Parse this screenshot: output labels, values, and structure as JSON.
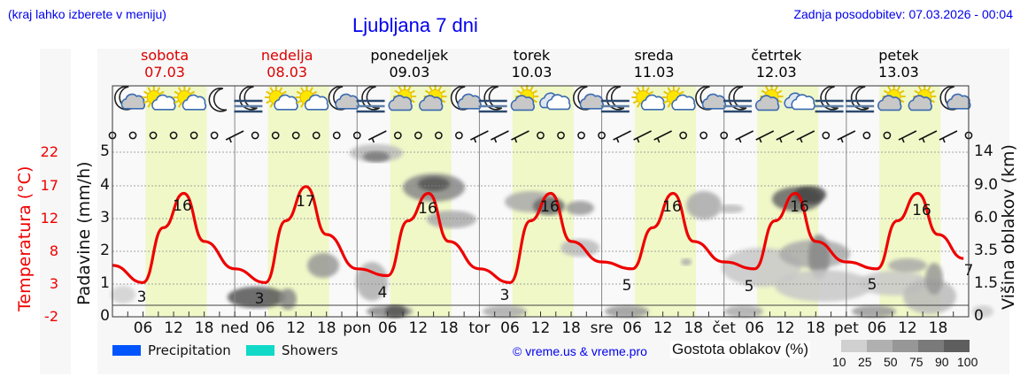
{
  "header": {
    "menu_hint": "(kraj lahko izberete v meniju)",
    "title": "Ljubljana 7 dni",
    "last_update": "Zadnja posodobitev: 07.03.2026 - 00:04"
  },
  "days": [
    {
      "name": "sobota",
      "date": "07.03",
      "weekend": true
    },
    {
      "name": "nedelja",
      "date": "08.03",
      "weekend": true
    },
    {
      "name": "ponedeljek",
      "date": "09.03",
      "weekend": false
    },
    {
      "name": "torek",
      "date": "10.03",
      "weekend": false
    },
    {
      "name": "sreda",
      "date": "11.03",
      "weekend": false
    },
    {
      "name": "četrtek",
      "date": "12.03",
      "weekend": false
    },
    {
      "name": "petek",
      "date": "13.03",
      "weekend": false
    }
  ],
  "axes": {
    "temperature_label": "Temperatura (°C)",
    "temperature_ticks": [
      "22",
      "17",
      "12",
      "8",
      "3",
      "-2"
    ],
    "precip_label": "Padavine (mm/h)",
    "precip_ticks": [
      "5",
      "4",
      "3",
      "2",
      "1",
      "0"
    ],
    "cloud_height_label": "Višina oblakov (km)",
    "cloud_height_ticks": [
      "14",
      "9.0",
      "6.0",
      "3.5",
      "1.5",
      "0"
    ],
    "x_ticks": [
      "06",
      "12",
      "18",
      "ned",
      "06",
      "12",
      "18",
      "pon",
      "06",
      "12",
      "18",
      "tor",
      "06",
      "12",
      "18",
      "sre",
      "06",
      "12",
      "18",
      "čet",
      "06",
      "12",
      "18",
      "pet",
      "06",
      "12",
      "18"
    ]
  },
  "legend": {
    "precipitation": {
      "label": "Precipitation",
      "color": "#0055ff"
    },
    "showers": {
      "label": "Showers",
      "color": "#11d9c8"
    },
    "copyright": "© vreme.us & vreme.pro",
    "cloud_density_title": "Gostota oblakov (%)",
    "cloud_density_scale": [
      "10",
      "25",
      "50",
      "75",
      "90",
      "100"
    ],
    "cloud_density_colors": [
      "#d0d0d0",
      "#b0b0b0",
      "#979797",
      "#7a7a7a",
      "#5e5e5e"
    ]
  },
  "icons": [
    "moon-cloud",
    "sun-cloud",
    "sun-cloud",
    "moon",
    "moon-fog",
    "sun-cloud",
    "sun-cloud",
    "moon-cloud",
    "moon-fog",
    "cloud-sun",
    "cloud-sun",
    "moon-cloud",
    "moon-fog",
    "cloud-sun",
    "cloud",
    "moon-cloud",
    "moon-fog",
    "sun-cloud",
    "sun-cloud",
    "moon-cloud",
    "moon-fog",
    "cloud-sun",
    "cloud",
    "moon-fog",
    "moon-fog",
    "cloud-sun",
    "cloud-sun",
    "moon-cloud"
  ],
  "colors": {
    "temperature_line": "#ee0000",
    "daylight_band": "#f0f8c8",
    "night_band": "#f9f9f9",
    "grid": "#888888",
    "link_blue": "#0000ee"
  },
  "chart_data": {
    "type": "line",
    "title": "Ljubljana 7 dni",
    "xlabel": "",
    "ylabel": "Temperatura (°C)",
    "ylim": [
      -2,
      22
    ],
    "grid": true,
    "series": [
      {
        "name": "Temperatura (°C)",
        "x_hours": [
          0,
          6,
          10,
          14,
          18,
          24,
          30,
          34,
          38,
          42,
          48,
          54,
          58,
          62,
          66,
          72,
          78,
          82,
          86,
          90,
          96,
          102,
          106,
          110,
          114,
          120,
          126,
          130,
          134,
          138,
          144,
          150,
          154,
          158,
          162,
          167
        ],
        "values": [
          5.5,
          3.0,
          11,
          16,
          9,
          5,
          3,
          12,
          17,
          10,
          5,
          4,
          12,
          16,
          9,
          5,
          3,
          12,
          16,
          9,
          6,
          5,
          11,
          16,
          9,
          6,
          5,
          12,
          16,
          9,
          6,
          5,
          12,
          16,
          10,
          6.5
        ]
      }
    ],
    "annotations": {
      "daily_min": [
        "3",
        "3",
        "4",
        "3",
        "5",
        "5",
        "5"
      ],
      "daily_max": [
        "16",
        "17",
        "16",
        "16",
        "16",
        "16",
        "16"
      ],
      "end_value": "7"
    },
    "secondary_axes": {
      "precipitation_mm_h": {
        "ticks": [
          0,
          1,
          2,
          3,
          4,
          5
        ]
      },
      "cloud_height_km": {
        "ticks": [
          0,
          1.5,
          3.5,
          6.0,
          9.0,
          14
        ]
      }
    },
    "precipitation": "none shown",
    "legend_position": "bottom"
  }
}
